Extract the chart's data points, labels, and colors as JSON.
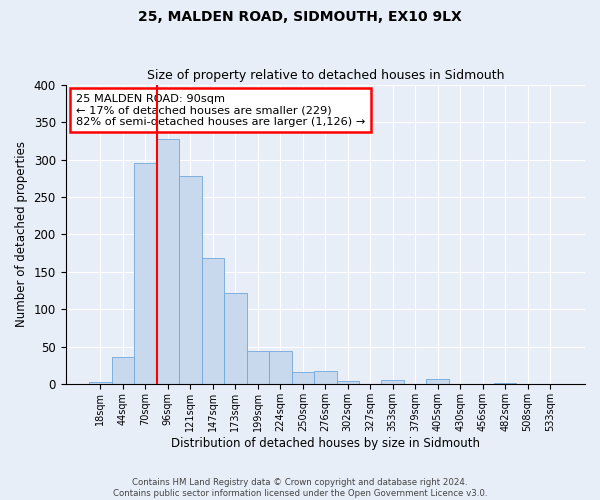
{
  "title": "25, MALDEN ROAD, SIDMOUTH, EX10 9LX",
  "subtitle": "Size of property relative to detached houses in Sidmouth",
  "xlabel": "Distribution of detached houses by size in Sidmouth",
  "ylabel": "Number of detached properties",
  "bar_labels": [
    "18sqm",
    "44sqm",
    "70sqm",
    "96sqm",
    "121sqm",
    "147sqm",
    "173sqm",
    "199sqm",
    "224sqm",
    "250sqm",
    "276sqm",
    "302sqm",
    "327sqm",
    "353sqm",
    "379sqm",
    "405sqm",
    "430sqm",
    "456sqm",
    "482sqm",
    "508sqm",
    "533sqm"
  ],
  "bar_values": [
    3,
    37,
    296,
    328,
    278,
    168,
    122,
    44,
    45,
    16,
    18,
    5,
    0,
    6,
    0,
    7,
    0,
    0,
    2,
    0,
    1
  ],
  "bar_color": "#c9d9ed",
  "bar_edge_color": "#6fa8dc",
  "vline_color": "red",
  "vline_position": 2.5,
  "ylim": [
    0,
    400
  ],
  "yticks": [
    0,
    50,
    100,
    150,
    200,
    250,
    300,
    350,
    400
  ],
  "annotation_text": "25 MALDEN ROAD: 90sqm\n← 17% of detached houses are smaller (229)\n82% of semi-detached houses are larger (1,126) →",
  "annotation_box_edge_color": "red",
  "footer_line1": "Contains HM Land Registry data © Crown copyright and database right 2024.",
  "footer_line2": "Contains public sector information licensed under the Open Government Licence v3.0.",
  "background_color": "#e8eef8",
  "plot_background_color": "#e8eef8",
  "grid_color": "white",
  "title_fontsize": 10,
  "subtitle_fontsize": 9
}
